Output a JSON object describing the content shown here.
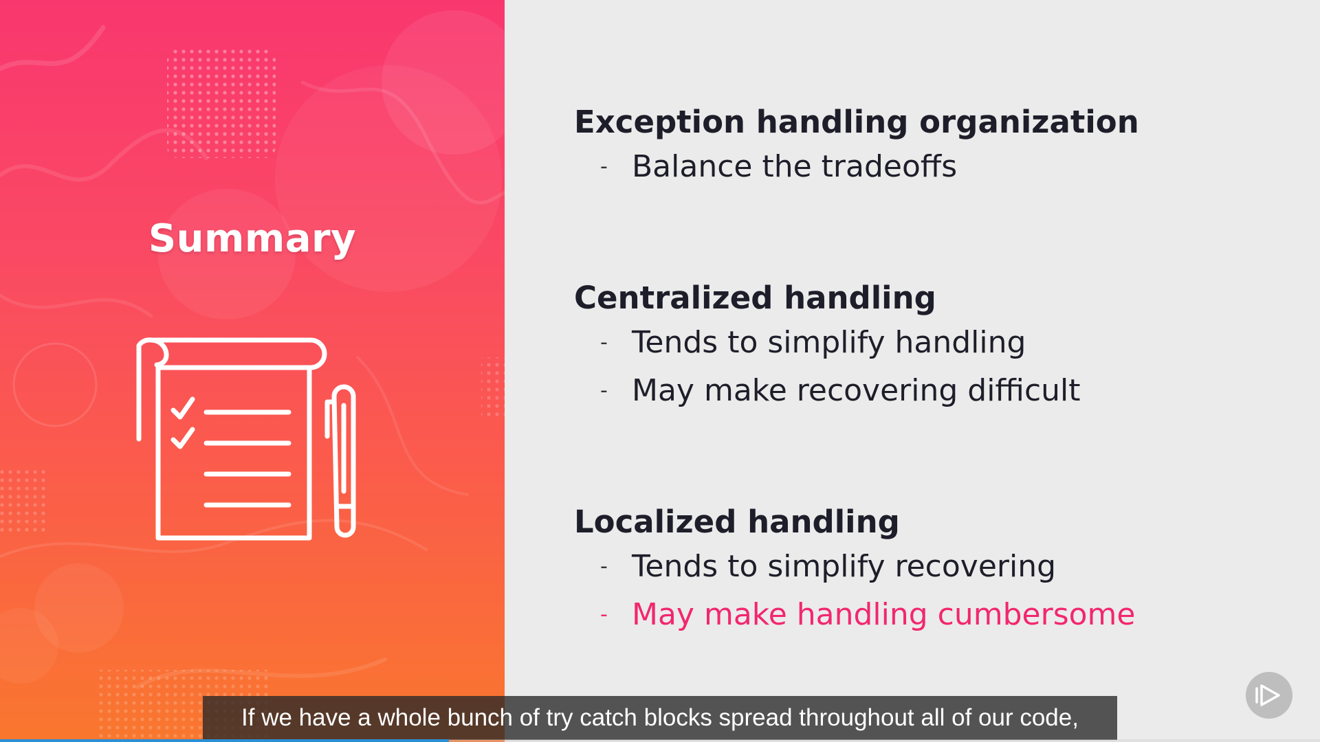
{
  "slide": {
    "panel_title": "Summary",
    "panel_icon": "checklist-icon",
    "colors": {
      "gradient_top": "#f9376f",
      "gradient_bottom": "#f9772e",
      "heading": "#1e1e2a",
      "highlight": "#f2276e",
      "background": "#ebebeb"
    },
    "sections": [
      {
        "heading": "Exception handling organization",
        "bullets": [
          {
            "dash": "-",
            "text": "Balance the tradeoffs"
          }
        ]
      },
      {
        "heading": "Centralized handling",
        "bullets": [
          {
            "dash": "-",
            "text": "Tends to simplify handling"
          },
          {
            "dash": "-",
            "text": "May make recovering difficult"
          }
        ]
      },
      {
        "heading": "Localized handling",
        "bullets": [
          {
            "dash": "-",
            "text": "Tends to simplify recovering"
          },
          {
            "dash": "-",
            "text": "May make handling cumbersome"
          }
        ]
      }
    ]
  },
  "player": {
    "caption": "If we have a whole bunch of try catch blocks spread throughout all of our code,",
    "play_icon": "play-icon",
    "progress_fraction": 0.34
  }
}
